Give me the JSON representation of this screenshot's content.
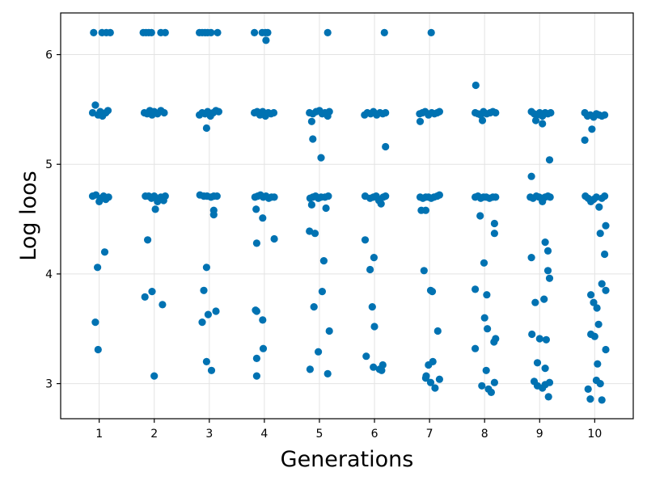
{
  "chart_data": {
    "type": "scatter",
    "title": "",
    "xlabel": "Generations",
    "ylabel": "Log loos",
    "xlim": [
      0.3,
      10.7
    ],
    "ylim": [
      2.68,
      6.38
    ],
    "xticks": [
      1,
      2,
      3,
      4,
      5,
      6,
      7,
      8,
      9,
      10
    ],
    "yticks": [
      3,
      4,
      5,
      6
    ],
    "grid": true,
    "legend": "none",
    "marker_color": "#0072b2",
    "series": [
      {
        "points": [
          [
            0.9,
            6.2
          ],
          [
            1.05,
            6.2
          ],
          [
            1.13,
            6.2
          ],
          [
            1.2,
            6.2
          ],
          [
            0.88,
            5.47
          ],
          [
            0.93,
            5.54
          ],
          [
            0.98,
            5.45
          ],
          [
            1.02,
            5.48
          ],
          [
            1.06,
            5.44
          ],
          [
            1.12,
            5.47
          ],
          [
            1.16,
            5.49
          ],
          [
            0.88,
            4.71
          ],
          [
            0.94,
            4.72
          ],
          [
            1.0,
            4.66
          ],
          [
            1.03,
            4.69
          ],
          [
            1.08,
            4.71
          ],
          [
            1.12,
            4.68
          ],
          [
            1.17,
            4.7
          ],
          [
            1.1,
            4.2
          ],
          [
            0.97,
            4.06
          ],
          [
            0.93,
            3.56
          ],
          [
            0.98,
            3.31
          ],
          [
            1.8,
            6.2
          ],
          [
            1.85,
            6.2
          ],
          [
            1.9,
            6.2
          ],
          [
            1.95,
            6.2
          ],
          [
            2.12,
            6.2
          ],
          [
            2.2,
            6.2
          ],
          [
            1.82,
            5.47
          ],
          [
            1.87,
            5.46
          ],
          [
            1.92,
            5.49
          ],
          [
            1.96,
            5.45
          ],
          [
            2.0,
            5.48
          ],
          [
            2.06,
            5.46
          ],
          [
            2.12,
            5.49
          ],
          [
            2.18,
            5.47
          ],
          [
            1.84,
            4.71
          ],
          [
            1.9,
            4.71
          ],
          [
            1.95,
            4.69
          ],
          [
            2.0,
            4.71
          ],
          [
            2.02,
            4.59
          ],
          [
            2.06,
            4.66
          ],
          [
            2.12,
            4.7
          ],
          [
            2.17,
            4.67
          ],
          [
            2.2,
            4.71
          ],
          [
            1.88,
            4.31
          ],
          [
            1.96,
            3.84
          ],
          [
            1.83,
            3.79
          ],
          [
            2.15,
            3.72
          ],
          [
            2.0,
            3.07
          ],
          [
            2.82,
            6.2
          ],
          [
            2.87,
            6.2
          ],
          [
            2.92,
            6.2
          ],
          [
            2.97,
            6.2
          ],
          [
            3.03,
            6.2
          ],
          [
            3.15,
            6.2
          ],
          [
            2.82,
            5.45
          ],
          [
            2.87,
            5.47
          ],
          [
            2.92,
            5.46
          ],
          [
            2.97,
            5.48
          ],
          [
            3.02,
            5.44
          ],
          [
            3.07,
            5.47
          ],
          [
            3.12,
            5.49
          ],
          [
            3.17,
            5.48
          ],
          [
            2.95,
            5.33
          ],
          [
            2.83,
            4.72
          ],
          [
            2.9,
            4.71
          ],
          [
            2.96,
            4.71
          ],
          [
            3.03,
            4.7
          ],
          [
            3.08,
            4.71
          ],
          [
            3.14,
            4.71
          ],
          [
            3.08,
            4.58
          ],
          [
            3.08,
            4.54
          ],
          [
            2.95,
            4.06
          ],
          [
            2.9,
            3.85
          ],
          [
            2.98,
            3.63
          ],
          [
            3.12,
            3.66
          ],
          [
            2.87,
            3.56
          ],
          [
            2.95,
            3.2
          ],
          [
            3.04,
            3.12
          ],
          [
            3.82,
            6.2
          ],
          [
            3.96,
            6.2
          ],
          [
            4.02,
            6.2
          ],
          [
            4.06,
            6.2
          ],
          [
            4.03,
            6.13
          ],
          [
            3.82,
            5.47
          ],
          [
            3.87,
            5.48
          ],
          [
            3.92,
            5.45
          ],
          [
            3.97,
            5.48
          ],
          [
            4.02,
            5.44
          ],
          [
            4.07,
            5.47
          ],
          [
            4.12,
            5.46
          ],
          [
            4.17,
            5.47
          ],
          [
            3.83,
            4.7
          ],
          [
            3.88,
            4.71
          ],
          [
            3.93,
            4.72
          ],
          [
            3.98,
            4.7
          ],
          [
            4.03,
            4.71
          ],
          [
            4.08,
            4.69
          ],
          [
            4.13,
            4.7
          ],
          [
            4.18,
            4.7
          ],
          [
            3.85,
            4.59
          ],
          [
            3.97,
            4.51
          ],
          [
            4.18,
            4.32
          ],
          [
            3.86,
            4.28
          ],
          [
            3.84,
            3.67
          ],
          [
            3.86,
            3.66
          ],
          [
            3.97,
            3.58
          ],
          [
            3.98,
            3.32
          ],
          [
            3.86,
            3.23
          ],
          [
            3.86,
            3.07
          ],
          [
            5.15,
            6.2
          ],
          [
            4.82,
            5.47
          ],
          [
            4.88,
            5.46
          ],
          [
            4.94,
            5.48
          ],
          [
            5.0,
            5.49
          ],
          [
            5.05,
            5.46
          ],
          [
            5.1,
            5.47
          ],
          [
            5.15,
            5.44
          ],
          [
            5.18,
            5.48
          ],
          [
            4.86,
            5.39
          ],
          [
            4.88,
            5.23
          ],
          [
            5.03,
            5.06
          ],
          [
            4.83,
            4.69
          ],
          [
            4.88,
            4.7
          ],
          [
            4.93,
            4.71
          ],
          [
            4.98,
            4.69
          ],
          [
            5.03,
            4.7
          ],
          [
            5.1,
            4.7
          ],
          [
            5.16,
            4.71
          ],
          [
            4.86,
            4.63
          ],
          [
            5.12,
            4.6
          ],
          [
            4.82,
            4.39
          ],
          [
            4.92,
            4.37
          ],
          [
            5.08,
            4.12
          ],
          [
            5.05,
            3.84
          ],
          [
            4.9,
            3.7
          ],
          [
            5.18,
            3.48
          ],
          [
            4.98,
            3.29
          ],
          [
            4.83,
            3.13
          ],
          [
            5.15,
            3.09
          ],
          [
            6.18,
            6.2
          ],
          [
            5.82,
            5.45
          ],
          [
            5.87,
            5.47
          ],
          [
            5.93,
            5.46
          ],
          [
            5.98,
            5.48
          ],
          [
            6.04,
            5.45
          ],
          [
            6.1,
            5.47
          ],
          [
            6.15,
            5.46
          ],
          [
            6.2,
            5.47
          ],
          [
            6.2,
            5.16
          ],
          [
            5.83,
            4.71
          ],
          [
            5.92,
            4.69
          ],
          [
            5.98,
            4.7
          ],
          [
            6.03,
            4.71
          ],
          [
            6.08,
            4.67
          ],
          [
            6.12,
            4.64
          ],
          [
            6.16,
            4.7
          ],
          [
            6.2,
            4.71
          ],
          [
            5.83,
            4.31
          ],
          [
            5.99,
            4.15
          ],
          [
            5.92,
            4.04
          ],
          [
            5.96,
            3.7
          ],
          [
            6.0,
            3.52
          ],
          [
            5.85,
            3.25
          ],
          [
            5.98,
            3.15
          ],
          [
            6.09,
            3.13
          ],
          [
            6.15,
            3.17
          ],
          [
            6.13,
            3.12
          ],
          [
            7.03,
            6.2
          ],
          [
            6.82,
            5.46
          ],
          [
            6.87,
            5.47
          ],
          [
            6.92,
            5.48
          ],
          [
            6.98,
            5.45
          ],
          [
            7.04,
            5.47
          ],
          [
            7.09,
            5.46
          ],
          [
            7.14,
            5.47
          ],
          [
            7.18,
            5.48
          ],
          [
            6.83,
            5.39
          ],
          [
            6.83,
            4.7
          ],
          [
            6.88,
            4.69
          ],
          [
            6.93,
            4.7
          ],
          [
            6.98,
            4.7
          ],
          [
            7.03,
            4.69
          ],
          [
            7.08,
            4.7
          ],
          [
            7.14,
            4.71
          ],
          [
            7.18,
            4.72
          ],
          [
            6.85,
            4.58
          ],
          [
            6.93,
            4.58
          ],
          [
            6.9,
            4.03
          ],
          [
            7.02,
            3.85
          ],
          [
            7.05,
            3.84
          ],
          [
            7.15,
            3.48
          ],
          [
            7.06,
            3.2
          ],
          [
            6.98,
            3.17
          ],
          [
            6.94,
            3.07
          ],
          [
            6.93,
            3.05
          ],
          [
            7.02,
            3.01
          ],
          [
            7.18,
            3.04
          ],
          [
            7.1,
            2.96
          ],
          [
            7.84,
            5.72
          ],
          [
            7.83,
            5.47
          ],
          [
            7.88,
            5.46
          ],
          [
            7.93,
            5.45
          ],
          [
            7.98,
            5.48
          ],
          [
            8.04,
            5.46
          ],
          [
            8.1,
            5.47
          ],
          [
            8.15,
            5.48
          ],
          [
            8.2,
            5.47
          ],
          [
            7.96,
            5.4
          ],
          [
            7.83,
            4.7
          ],
          [
            7.88,
            4.71
          ],
          [
            7.93,
            4.69
          ],
          [
            7.98,
            4.7
          ],
          [
            8.03,
            4.7
          ],
          [
            8.09,
            4.69
          ],
          [
            8.15,
            4.7
          ],
          [
            8.2,
            4.7
          ],
          [
            7.92,
            4.53
          ],
          [
            8.18,
            4.46
          ],
          [
            8.18,
            4.37
          ],
          [
            7.99,
            4.1
          ],
          [
            7.83,
            3.86
          ],
          [
            8.04,
            3.81
          ],
          [
            8.0,
            3.6
          ],
          [
            8.05,
            3.5
          ],
          [
            8.2,
            3.41
          ],
          [
            8.17,
            3.38
          ],
          [
            7.83,
            3.32
          ],
          [
            8.03,
            3.12
          ],
          [
            7.95,
            2.98
          ],
          [
            8.07,
            2.95
          ],
          [
            8.12,
            2.92
          ],
          [
            8.18,
            3.01
          ],
          [
            8.85,
            5.48
          ],
          [
            8.9,
            5.46
          ],
          [
            8.95,
            5.45
          ],
          [
            9.0,
            5.47
          ],
          [
            9.05,
            5.44
          ],
          [
            9.1,
            5.47
          ],
          [
            9.15,
            5.46
          ],
          [
            9.2,
            5.47
          ],
          [
            8.93,
            5.4
          ],
          [
            9.05,
            5.37
          ],
          [
            9.18,
            5.04
          ],
          [
            8.85,
            4.89
          ],
          [
            8.83,
            4.7
          ],
          [
            8.88,
            4.69
          ],
          [
            8.94,
            4.71
          ],
          [
            8.99,
            4.7
          ],
          [
            9.04,
            4.69
          ],
          [
            9.1,
            4.7
          ],
          [
            9.15,
            4.71
          ],
          [
            9.19,
            4.7
          ],
          [
            9.05,
            4.66
          ],
          [
            9.1,
            4.29
          ],
          [
            9.15,
            4.21
          ],
          [
            8.85,
            4.15
          ],
          [
            9.15,
            4.03
          ],
          [
            9.18,
            3.96
          ],
          [
            9.08,
            3.77
          ],
          [
            8.92,
            3.74
          ],
          [
            8.86,
            3.45
          ],
          [
            9.0,
            3.41
          ],
          [
            9.12,
            3.4
          ],
          [
            8.96,
            3.19
          ],
          [
            9.1,
            3.14
          ],
          [
            8.9,
            3.02
          ],
          [
            8.96,
            2.98
          ],
          [
            9.1,
            2.99
          ],
          [
            9.18,
            3.01
          ],
          [
            9.05,
            2.96
          ],
          [
            9.16,
            2.88
          ],
          [
            9.82,
            5.47
          ],
          [
            9.87,
            5.44
          ],
          [
            9.92,
            5.45
          ],
          [
            9.98,
            5.43
          ],
          [
            10.03,
            5.46
          ],
          [
            10.08,
            5.45
          ],
          [
            10.13,
            5.44
          ],
          [
            10.18,
            5.45
          ],
          [
            9.95,
            5.32
          ],
          [
            9.82,
            5.22
          ],
          [
            9.83,
            4.71
          ],
          [
            9.88,
            4.69
          ],
          [
            9.93,
            4.66
          ],
          [
            9.98,
            4.68
          ],
          [
            10.03,
            4.7
          ],
          [
            10.08,
            4.61
          ],
          [
            10.13,
            4.69
          ],
          [
            10.18,
            4.71
          ],
          [
            10.2,
            4.44
          ],
          [
            10.1,
            4.37
          ],
          [
            10.18,
            4.18
          ],
          [
            10.13,
            3.91
          ],
          [
            10.2,
            3.85
          ],
          [
            9.93,
            3.81
          ],
          [
            9.98,
            3.74
          ],
          [
            10.04,
            3.69
          ],
          [
            10.07,
            3.54
          ],
          [
            9.93,
            3.45
          ],
          [
            10.0,
            3.43
          ],
          [
            10.2,
            3.31
          ],
          [
            10.05,
            3.18
          ],
          [
            10.03,
            3.03
          ],
          [
            10.1,
            3.0
          ],
          [
            9.88,
            2.95
          ],
          [
            9.92,
            2.86
          ],
          [
            10.13,
            2.85
          ]
        ]
      }
    ]
  }
}
